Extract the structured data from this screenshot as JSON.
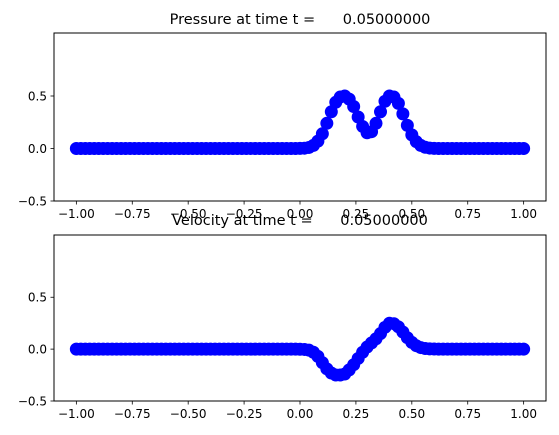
{
  "figure": {
    "background": "#ffffff",
    "marker_color": "#0000ff"
  },
  "chart_data": [
    {
      "type": "scatter",
      "title": "Pressure at time t =      0.05000000",
      "xlabel": "",
      "ylabel": "",
      "xlim": [
        -1.1,
        1.1
      ],
      "ylim": [
        -0.5,
        1.1
      ],
      "xticks": [
        -1.0,
        -0.75,
        -0.5,
        -0.25,
        0.0,
        0.25,
        0.5,
        0.75,
        1.0
      ],
      "xtick_labels": [
        "−1.00",
        "−0.75",
        "−0.50",
        "−0.25",
        "0.00",
        "0.25",
        "0.50",
        "0.75",
        "1.00"
      ],
      "yticks": [
        -0.5,
        0.0,
        0.5
      ],
      "ytick_labels": [
        "−0.5",
        "0.0",
        "0.5"
      ],
      "grid": false,
      "series": [
        {
          "color": "#0000ff",
          "marker": "circle",
          "x": [
            -1.0,
            -0.98,
            -0.96,
            -0.94,
            -0.92,
            -0.9,
            -0.88,
            -0.86,
            -0.84,
            -0.82,
            -0.8,
            -0.78,
            -0.76,
            -0.74,
            -0.72,
            -0.7,
            -0.68,
            -0.66,
            -0.64,
            -0.62,
            -0.6,
            -0.58,
            -0.56,
            -0.54,
            -0.52,
            -0.5,
            -0.48,
            -0.46,
            -0.44,
            -0.42,
            -0.4,
            -0.38,
            -0.36,
            -0.34,
            -0.32,
            -0.3,
            -0.28,
            -0.26,
            -0.24,
            -0.22,
            -0.2,
            -0.18,
            -0.16,
            -0.14,
            -0.12,
            -0.1,
            -0.08,
            -0.06,
            -0.04,
            -0.02,
            0.0,
            0.02,
            0.04,
            0.06,
            0.08,
            0.1,
            0.12,
            0.14,
            0.16,
            0.18,
            0.2,
            0.22,
            0.24,
            0.26,
            0.28,
            0.3,
            0.32,
            0.34,
            0.36,
            0.38,
            0.4,
            0.42,
            0.44,
            0.46,
            0.48,
            0.5,
            0.52,
            0.54,
            0.56,
            0.58,
            0.6,
            0.62,
            0.64,
            0.66,
            0.68,
            0.7,
            0.72,
            0.74,
            0.76,
            0.78,
            0.8,
            0.82,
            0.84,
            0.86,
            0.88,
            0.9,
            0.92,
            0.94,
            0.96,
            0.98,
            1.0
          ],
          "y": [
            0,
            0,
            0,
            0,
            0,
            0,
            0,
            0,
            0,
            0,
            0,
            0,
            0,
            0,
            0,
            0,
            0,
            0,
            0,
            0,
            0,
            0,
            0,
            0,
            0,
            0,
            0,
            0,
            0,
            0,
            0,
            0,
            0,
            0,
            0,
            0,
            0,
            0,
            0,
            0,
            0,
            0,
            0,
            0,
            0,
            0,
            0,
            0,
            0,
            0,
            0.001,
            0.003,
            0.01,
            0.03,
            0.07,
            0.14,
            0.24,
            0.35,
            0.44,
            0.49,
            0.5,
            0.47,
            0.4,
            0.3,
            0.21,
            0.15,
            0.16,
            0.24,
            0.35,
            0.45,
            0.5,
            0.49,
            0.43,
            0.33,
            0.22,
            0.13,
            0.065,
            0.03,
            0.012,
            0.004,
            0.001,
            0,
            0,
            0,
            0,
            0,
            0,
            0,
            0,
            0,
            0,
            0,
            0,
            0,
            0,
            0,
            0,
            0,
            0,
            0,
            0
          ]
        }
      ]
    },
    {
      "type": "scatter",
      "title": "Velocity at time t =      0.05000000",
      "xlabel": "",
      "ylabel": "",
      "xlim": [
        -1.1,
        1.1
      ],
      "ylim": [
        -0.5,
        1.1
      ],
      "xticks": [
        -1.0,
        -0.75,
        -0.5,
        -0.25,
        0.0,
        0.25,
        0.5,
        0.75,
        1.0
      ],
      "xtick_labels": [
        "−1.00",
        "−0.75",
        "−0.50",
        "−0.25",
        "0.00",
        "0.25",
        "0.50",
        "0.75",
        "1.00"
      ],
      "yticks": [
        -0.5,
        0.0,
        0.5
      ],
      "ytick_labels": [
        "−0.5",
        "0.0",
        "0.5"
      ],
      "grid": false,
      "series": [
        {
          "color": "#0000ff",
          "marker": "circle",
          "x": [
            -1.0,
            -0.98,
            -0.96,
            -0.94,
            -0.92,
            -0.9,
            -0.88,
            -0.86,
            -0.84,
            -0.82,
            -0.8,
            -0.78,
            -0.76,
            -0.74,
            -0.72,
            -0.7,
            -0.68,
            -0.66,
            -0.64,
            -0.62,
            -0.6,
            -0.58,
            -0.56,
            -0.54,
            -0.52,
            -0.5,
            -0.48,
            -0.46,
            -0.44,
            -0.42,
            -0.4,
            -0.38,
            -0.36,
            -0.34,
            -0.32,
            -0.3,
            -0.28,
            -0.26,
            -0.24,
            -0.22,
            -0.2,
            -0.18,
            -0.16,
            -0.14,
            -0.12,
            -0.1,
            -0.08,
            -0.06,
            -0.04,
            -0.02,
            0.0,
            0.02,
            0.04,
            0.06,
            0.08,
            0.1,
            0.12,
            0.14,
            0.16,
            0.18,
            0.2,
            0.22,
            0.24,
            0.26,
            0.28,
            0.3,
            0.32,
            0.34,
            0.36,
            0.38,
            0.4,
            0.42,
            0.44,
            0.46,
            0.48,
            0.5,
            0.52,
            0.54,
            0.56,
            0.58,
            0.6,
            0.62,
            0.64,
            0.66,
            0.68,
            0.7,
            0.72,
            0.74,
            0.76,
            0.78,
            0.8,
            0.82,
            0.84,
            0.86,
            0.88,
            0.9,
            0.92,
            0.94,
            0.96,
            0.98,
            1.0
          ],
          "y": [
            0,
            0,
            0,
            0,
            0,
            0,
            0,
            0,
            0,
            0,
            0,
            0,
            0,
            0,
            0,
            0,
            0,
            0,
            0,
            0,
            0,
            0,
            0,
            0,
            0,
            0,
            0,
            0,
            0,
            0,
            0,
            0,
            0,
            0,
            0,
            0,
            0,
            0,
            0,
            0,
            0,
            0,
            0,
            0,
            0,
            0,
            0,
            0,
            0,
            0,
            -0.001,
            -0.003,
            -0.01,
            -0.03,
            -0.07,
            -0.13,
            -0.19,
            -0.23,
            -0.25,
            -0.25,
            -0.24,
            -0.2,
            -0.15,
            -0.09,
            -0.03,
            0.02,
            0.06,
            0.1,
            0.15,
            0.21,
            0.25,
            0.245,
            0.215,
            0.165,
            0.11,
            0.065,
            0.033,
            0.015,
            0.006,
            0.002,
            0.001,
            0,
            0,
            0,
            0,
            0,
            0,
            0,
            0,
            0,
            0,
            0,
            0,
            0,
            0,
            0,
            0,
            0,
            0,
            0,
            0
          ]
        }
      ]
    }
  ]
}
